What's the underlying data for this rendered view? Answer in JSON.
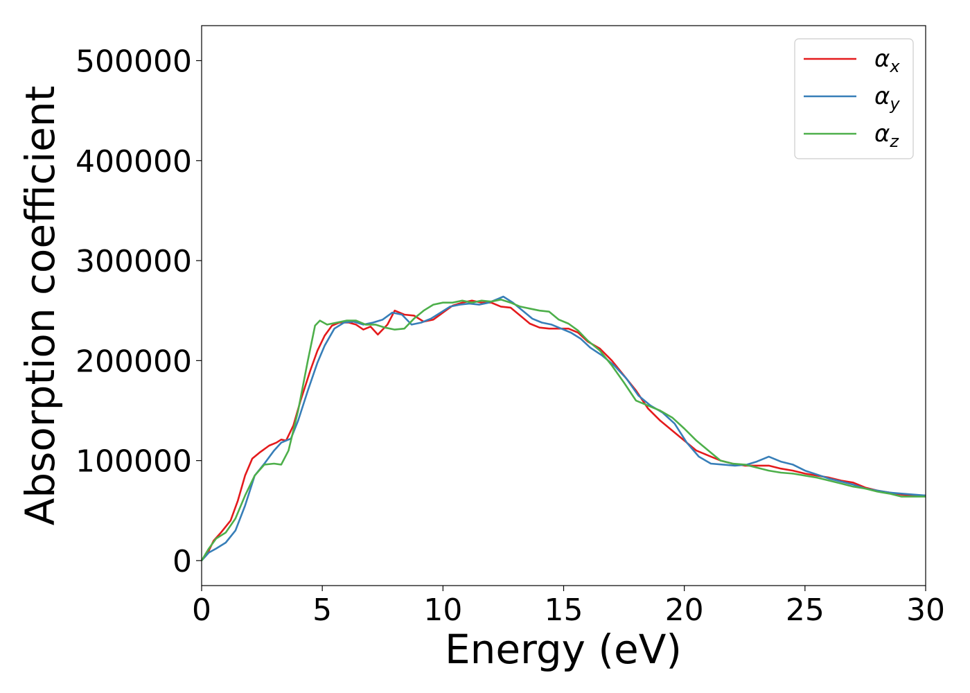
{
  "chart_data": {
    "type": "line",
    "title": "",
    "xlabel": "Energy (eV)",
    "ylabel": "Absorption coefficient",
    "xlim": [
      0,
      30
    ],
    "ylim": [
      -25000,
      535000
    ],
    "xticks": [
      0,
      5,
      10,
      15,
      20,
      25,
      30
    ],
    "xtick_labels": [
      "0",
      "5",
      "10",
      "15",
      "20",
      "25",
      "30"
    ],
    "yticks": [
      0,
      100000,
      200000,
      300000,
      400000,
      500000
    ],
    "ytick_labels": [
      "0",
      "100000",
      "200000",
      "300000",
      "400000",
      "500000"
    ],
    "grid": false,
    "legend_position": "top-right",
    "series": [
      {
        "name": "α_x",
        "legend_symbol": "α",
        "legend_subscript": "x",
        "color": "#e41a1c",
        "x": [
          0,
          0.3,
          0.5,
          0.8,
          1.2,
          1.5,
          1.8,
          2.1,
          2.4,
          2.8,
          3.1,
          3.3,
          3.5,
          3.8,
          4.1,
          4.5,
          4.8,
          5.1,
          5.4,
          5.7,
          6.1,
          6.4,
          6.7,
          7.0,
          7.3,
          7.7,
          8.0,
          8.4,
          8.8,
          9.2,
          9.6,
          10.0,
          10.4,
          10.8,
          11.2,
          11.6,
          12.0,
          12.4,
          12.8,
          13.2,
          13.6,
          14.0,
          14.4,
          14.8,
          15.2,
          15.6,
          16.0,
          16.5,
          17.0,
          17.5,
          18.0,
          18.5,
          19.0,
          19.5,
          20.0,
          20.5,
          21.0,
          21.5,
          22.0,
          22.5,
          23.0,
          23.5,
          24.0,
          24.5,
          25.0,
          25.5,
          26.0,
          26.5,
          27.0,
          27.5,
          28.0,
          28.5,
          29.0,
          29.5,
          30.0
        ],
        "y": [
          0,
          10000,
          20000,
          28000,
          40000,
          60000,
          85000,
          102000,
          108000,
          115000,
          118000,
          121000,
          120000,
          135000,
          160000,
          190000,
          210000,
          225000,
          235000,
          238000,
          238000,
          236000,
          231000,
          234000,
          226000,
          236000,
          250000,
          246000,
          245000,
          239000,
          241000,
          248000,
          255000,
          258000,
          260000,
          258000,
          258000,
          254000,
          253000,
          245000,
          237000,
          233000,
          232000,
          232000,
          232000,
          228000,
          219000,
          212000,
          200000,
          185000,
          170000,
          152000,
          140000,
          130000,
          120000,
          110000,
          105000,
          100000,
          97000,
          95000,
          95000,
          95000,
          92000,
          90000,
          87000,
          85000,
          83000,
          80000,
          78000,
          73000,
          70000,
          68000,
          66000,
          65000,
          65000
        ]
      },
      {
        "name": "α_y",
        "legend_symbol": "α",
        "legend_subscript": "y",
        "color": "#377eb8",
        "x": [
          0,
          0.3,
          0.6,
          1.0,
          1.4,
          1.8,
          2.2,
          2.6,
          3.0,
          3.3,
          3.7,
          4.0,
          4.4,
          4.8,
          5.1,
          5.5,
          5.9,
          6.3,
          6.7,
          7.1,
          7.5,
          7.9,
          8.3,
          8.7,
          9.1,
          9.5,
          9.9,
          10.3,
          10.7,
          11.1,
          11.5,
          11.9,
          12.3,
          12.5,
          12.9,
          13.3,
          13.7,
          14.1,
          14.5,
          14.9,
          15.3,
          15.7,
          16.1,
          16.6,
          17.1,
          17.6,
          18.1,
          18.6,
          19.1,
          19.6,
          20.1,
          20.6,
          21.1,
          21.6,
          22.1,
          22.6,
          23.0,
          23.5,
          24.0,
          24.5,
          25.0,
          25.5,
          26.0,
          26.5,
          27.0,
          27.5,
          28.0,
          28.5,
          29.0,
          29.5,
          30.0
        ],
        "y": [
          0,
          8000,
          12000,
          18000,
          30000,
          55000,
          85000,
          97000,
          110000,
          118000,
          122000,
          140000,
          170000,
          198000,
          215000,
          232000,
          238000,
          239000,
          236000,
          238000,
          241000,
          248000,
          246000,
          236000,
          238000,
          242000,
          248000,
          254000,
          256000,
          257000,
          256000,
          258000,
          262000,
          264000,
          258000,
          250000,
          242000,
          238000,
          236000,
          232000,
          228000,
          222000,
          213000,
          205000,
          195000,
          182000,
          165000,
          155000,
          148000,
          137000,
          118000,
          104000,
          97000,
          96000,
          95000,
          96000,
          99000,
          104000,
          99000,
          96000,
          90000,
          86000,
          82000,
          79000,
          76000,
          72000,
          70000,
          68000,
          67000,
          66000,
          65000
        ]
      },
      {
        "name": "α_z",
        "legend_symbol": "α",
        "legend_subscript": "z",
        "color": "#4daf4a",
        "x": [
          0,
          0.3,
          0.6,
          1.0,
          1.4,
          1.8,
          2.2,
          2.6,
          3.0,
          3.3,
          3.6,
          4.0,
          4.4,
          4.7,
          4.9,
          5.2,
          5.6,
          6.0,
          6.4,
          6.8,
          7.2,
          7.6,
          8.0,
          8.4,
          8.8,
          9.2,
          9.6,
          10.0,
          10.4,
          10.8,
          11.2,
          11.6,
          12.0,
          12.4,
          12.8,
          13.2,
          13.6,
          14.0,
          14.4,
          14.8,
          15.2,
          15.6,
          16.0,
          16.5,
          17.0,
          17.5,
          18.0,
          18.5,
          19.0,
          19.5,
          20.0,
          20.5,
          21.0,
          21.5,
          22.0,
          22.5,
          23.0,
          23.5,
          24.0,
          24.5,
          25.0,
          25.5,
          26.0,
          26.5,
          27.0,
          27.5,
          28.0,
          28.5,
          29.0,
          29.5,
          30.0
        ],
        "y": [
          0,
          12000,
          22000,
          28000,
          42000,
          65000,
          85000,
          96000,
          97000,
          96000,
          110000,
          150000,
          200000,
          235000,
          240000,
          236000,
          238000,
          240000,
          240000,
          236000,
          236000,
          233000,
          231000,
          232000,
          242000,
          250000,
          256000,
          258000,
          258000,
          260000,
          258000,
          260000,
          259000,
          261000,
          258000,
          254000,
          252000,
          250000,
          249000,
          241000,
          237000,
          230000,
          220000,
          210000,
          195000,
          178000,
          160000,
          155000,
          150000,
          143000,
          132000,
          120000,
          110000,
          100000,
          97000,
          96000,
          93000,
          90000,
          88000,
          87000,
          85000,
          83000,
          80000,
          77000,
          74000,
          72000,
          69000,
          67000,
          64000,
          64000,
          64000
        ]
      }
    ]
  }
}
